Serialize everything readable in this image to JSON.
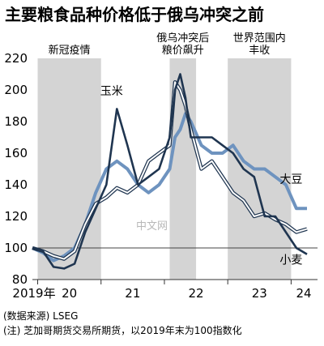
{
  "chart_data": {
    "type": "line",
    "title": "主要粮食品种价格低于俄乌冲突之前",
    "x_ticks": [
      "2019年",
      "20",
      "21",
      "22",
      "23",
      "24"
    ],
    "ylim": [
      80,
      220
    ],
    "y_ticks": [
      80,
      100,
      120,
      140,
      160,
      180,
      200,
      220
    ],
    "reference_line": 100,
    "period_annotations": [
      {
        "label": "新冠疫情",
        "from": "2020-01",
        "to": "2020-12"
      },
      {
        "label_lines": [
          "俄乌冲突后",
          "粮价飙升"
        ],
        "from": "2022-02",
        "to": "2022-06"
      },
      {
        "label_lines": [
          "世界范围内",
          "丰收"
        ],
        "from": "2023-01",
        "to": "2023-12"
      }
    ],
    "x": [
      "2019-12",
      "2020-02",
      "2020-04",
      "2020-06",
      "2020-08",
      "2020-10",
      "2020-12",
      "2021-02",
      "2021-04",
      "2021-06",
      "2021-08",
      "2021-10",
      "2021-12",
      "2022-02",
      "2022-03",
      "2022-04",
      "2022-05",
      "2022-06",
      "2022-08",
      "2022-10",
      "2022-12",
      "2023-02",
      "2023-04",
      "2023-06",
      "2023-08",
      "2023-10",
      "2023-12",
      "2024-02",
      "2024-04"
    ],
    "series": [
      {
        "name": "玉米",
        "color": "#1f3550",
        "values": [
          100,
          98,
          88,
          87,
          90,
          110,
          125,
          140,
          188,
          165,
          140,
          145,
          150,
          170,
          200,
          210,
          195,
          170,
          170,
          170,
          165,
          160,
          150,
          145,
          120,
          120,
          110,
          100,
          96
        ]
      },
      {
        "name": "大豆",
        "color": "#6e93bf",
        "values": [
          100,
          97,
          92,
          95,
          100,
          115,
          135,
          150,
          155,
          150,
          140,
          135,
          140,
          150,
          170,
          175,
          185,
          180,
          165,
          160,
          160,
          165,
          155,
          150,
          150,
          145,
          140,
          125,
          125
        ]
      },
      {
        "name": "小麦",
        "color": "#ffffff",
        "values": [
          100,
          98,
          95,
          93,
          98,
          115,
          128,
          132,
          138,
          135,
          140,
          155,
          160,
          165,
          205,
          200,
          190,
          175,
          150,
          155,
          145,
          135,
          130,
          120,
          122,
          118,
          115,
          110,
          112
        ]
      }
    ]
  },
  "notes": {
    "source": "(数据来源) LSEG",
    "note": "(注) 芝加哥期货交易所期货，以2019年末为100指数化"
  },
  "watermark": "中文网",
  "colors": {
    "shade": "#d4d4d4",
    "reference": "#9a9a9a"
  }
}
